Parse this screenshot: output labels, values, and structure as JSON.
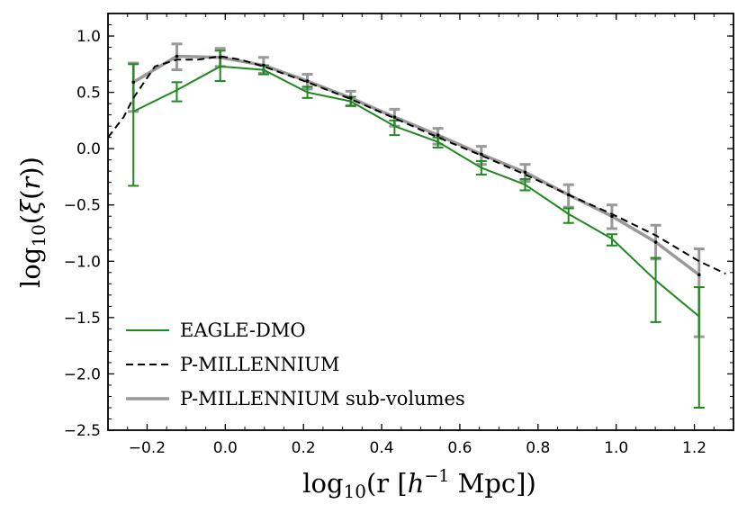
{
  "chart_data": {
    "type": "line",
    "xlabel": "log10(r [h^-1 Mpc])",
    "ylabel": "log10(ξ(r))",
    "xlim": [
      -0.3,
      1.3
    ],
    "ylim": [
      -2.5,
      1.2
    ],
    "x_ticks": [
      -0.2,
      0.0,
      0.2,
      0.4,
      0.6,
      0.8,
      1.0,
      1.2
    ],
    "x_tick_labels": [
      "−0.2",
      "0.0",
      "0.2",
      "0.4",
      "0.6",
      "0.8",
      "1.0",
      "1.2"
    ],
    "y_ticks": [
      1.0,
      0.5,
      0.0,
      -0.5,
      -1.0,
      -1.5,
      -2.0,
      -2.5
    ],
    "y_tick_labels": [
      "1.0",
      "0.5",
      "0.0",
      "−0.5",
      "−1.0",
      "−1.5",
      "−2.0",
      "−2.5"
    ],
    "legend_position": "bottom-left",
    "series": [
      {
        "name": "EAGLE-DMO",
        "color": "#1e8a1e",
        "style": "solid",
        "x": [
          -0.235,
          -0.124,
          -0.013,
          0.098,
          0.21,
          0.321,
          0.433,
          0.544,
          0.655,
          0.767,
          0.878,
          0.989,
          1.101,
          1.212
        ],
        "y": [
          0.33,
          0.52,
          0.73,
          0.7,
          0.5,
          0.42,
          0.2,
          0.06,
          -0.17,
          -0.32,
          -0.58,
          -0.8,
          -1.17,
          -1.49
        ],
        "yerr_low": [
          0.66,
          0.1,
          0.13,
          0.04,
          0.05,
          0.04,
          0.08,
          0.05,
          0.06,
          0.05,
          0.08,
          0.06,
          0.37,
          0.81
        ],
        "yerr_high": [
          0.42,
          0.07,
          0.14,
          0.04,
          0.05,
          0.04,
          0.05,
          0.04,
          0.06,
          0.05,
          0.05,
          0.04,
          0.2,
          0.26
        ]
      },
      {
        "name": "P-MILLENNIUM",
        "color": "#000000",
        "style": "dashed",
        "x": [
          -0.3,
          -0.26,
          -0.235,
          -0.18,
          -0.124,
          -0.07,
          -0.013,
          0.04,
          0.098,
          0.21,
          0.321,
          0.433,
          0.544,
          0.655,
          0.767,
          0.878,
          0.989,
          1.101,
          1.212,
          1.28
        ],
        "y": [
          0.1,
          0.28,
          0.45,
          0.73,
          0.79,
          0.79,
          0.82,
          0.79,
          0.73,
          0.59,
          0.44,
          0.27,
          0.1,
          -0.06,
          -0.23,
          -0.41,
          -0.58,
          -0.77,
          -1.0,
          -1.11
        ]
      },
      {
        "name": "P-MILLENNIUM sub-volumes",
        "color": "#999999",
        "style": "solid",
        "x": [
          -0.235,
          -0.124,
          -0.013,
          0.098,
          0.21,
          0.321,
          0.433,
          0.544,
          0.655,
          0.767,
          0.878,
          0.989,
          1.101,
          1.212
        ],
        "y": [
          0.59,
          0.82,
          0.81,
          0.74,
          0.6,
          0.45,
          0.28,
          0.12,
          -0.05,
          -0.21,
          -0.41,
          -0.6,
          -0.83,
          -1.12
        ],
        "yerr_low": [
          0.26,
          0.12,
          0.08,
          0.07,
          0.07,
          0.07,
          0.08,
          0.08,
          0.09,
          0.08,
          0.11,
          0.11,
          0.15,
          0.55
        ],
        "yerr_high": [
          0.17,
          0.11,
          0.08,
          0.07,
          0.06,
          0.06,
          0.07,
          0.06,
          0.07,
          0.07,
          0.09,
          0.1,
          0.15,
          0.23
        ]
      }
    ]
  }
}
